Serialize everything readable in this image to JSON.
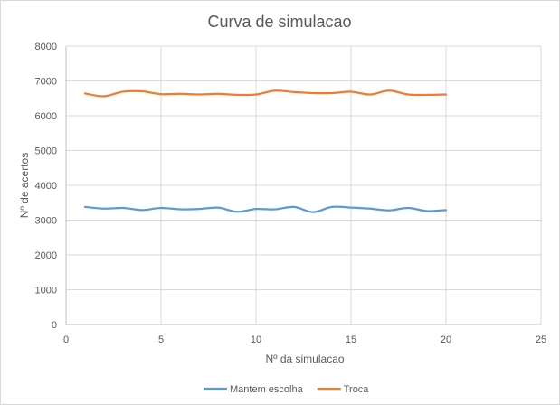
{
  "chart_data": {
    "type": "line",
    "title": "Curva de simulacao",
    "xlabel": "Nº da simulacao",
    "ylabel": "Nº de acertos",
    "xlim": [
      0,
      25
    ],
    "ylim": [
      0,
      8000
    ],
    "xticks": [
      0,
      5,
      10,
      15,
      20,
      25
    ],
    "yticks": [
      0,
      1000,
      2000,
      3000,
      4000,
      5000,
      6000,
      7000,
      8000
    ],
    "grid": true,
    "legend_position": "bottom",
    "smooth": true,
    "x": [
      1,
      2,
      3,
      4,
      5,
      6,
      7,
      8,
      9,
      10,
      11,
      12,
      13,
      14,
      15,
      16,
      17,
      18,
      19,
      20
    ],
    "series": [
      {
        "name": "Mantem escolha",
        "color": "#5b9bd5",
        "values": [
          3380,
          3330,
          3350,
          3290,
          3350,
          3310,
          3320,
          3360,
          3240,
          3320,
          3310,
          3380,
          3230,
          3380,
          3360,
          3330,
          3280,
          3350,
          3260,
          3290
        ]
      },
      {
        "name": "Troca",
        "color": "#ed7d31",
        "values": [
          6640,
          6560,
          6690,
          6700,
          6620,
          6630,
          6610,
          6630,
          6600,
          6610,
          6720,
          6680,
          6650,
          6650,
          6690,
          6610,
          6720,
          6610,
          6600,
          6610
        ]
      }
    ]
  }
}
